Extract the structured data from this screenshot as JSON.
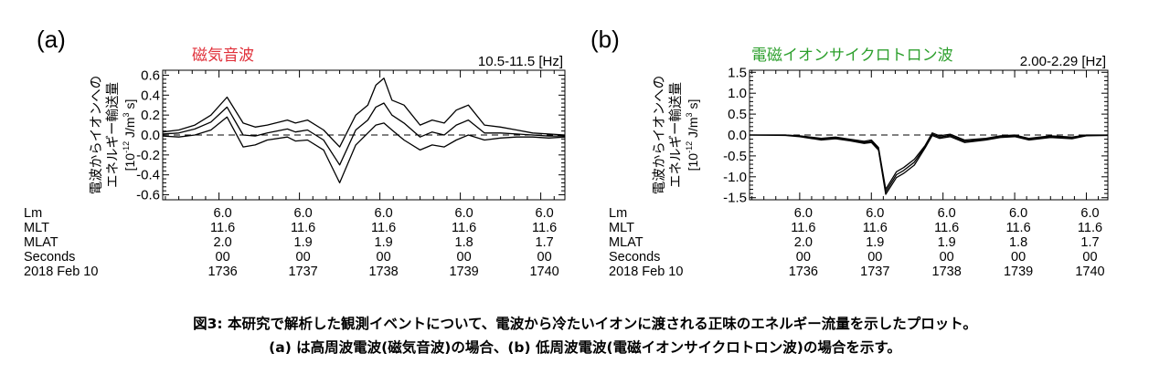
{
  "chart_data": [
    {
      "type": "line",
      "panel_label": "(a)",
      "title": "磁気音波",
      "title_color": "#e0303a",
      "freq_label": "10.5-11.5 [Hz]",
      "ylabel_line1": "電波からイオンへの",
      "ylabel_line2": "エネルギー輸送量",
      "ylabel_units_parts": [
        "[10",
        "-12",
        " J/m",
        "3",
        " s]"
      ],
      "ylim": [
        -0.65,
        0.65
      ],
      "yticks": [
        -0.6,
        -0.4,
        -0.2,
        0.0,
        0.2,
        0.4,
        0.6
      ],
      "ytick_labels": [
        "-0.6",
        "-0.4",
        "-0.2",
        "0.0",
        "0.2",
        "0.4",
        "0.6"
      ],
      "xlim": [
        1735.3,
        1740.3
      ],
      "zero_line": "dashed",
      "series": [
        {
          "role": "upper",
          "x": [
            1735.3,
            1735.5,
            1735.7,
            1735.9,
            1736.1,
            1736.3,
            1736.45,
            1736.6,
            1736.85,
            1736.95,
            1737.1,
            1737.3,
            1737.5,
            1737.7,
            1737.85,
            1737.95,
            1738.05,
            1738.15,
            1738.3,
            1738.5,
            1738.65,
            1738.8,
            1738.95,
            1739.1,
            1739.3,
            1739.5,
            1739.7,
            1739.9,
            1740.1,
            1740.3
          ],
          "y": [
            0.03,
            0.05,
            0.1,
            0.2,
            0.38,
            0.12,
            0.08,
            0.1,
            0.15,
            0.12,
            0.15,
            0.05,
            -0.12,
            0.2,
            0.3,
            0.5,
            0.57,
            0.35,
            0.3,
            0.1,
            0.15,
            0.12,
            0.25,
            0.3,
            0.1,
            0.08,
            0.05,
            0.02,
            0.01,
            0.0
          ]
        },
        {
          "role": "middle",
          "x": [
            1735.3,
            1735.5,
            1735.7,
            1735.9,
            1736.1,
            1736.3,
            1736.45,
            1736.6,
            1736.85,
            1736.95,
            1737.1,
            1737.3,
            1737.5,
            1737.7,
            1737.85,
            1737.95,
            1738.05,
            1738.15,
            1738.3,
            1738.5,
            1738.65,
            1738.8,
            1738.95,
            1739.1,
            1739.3,
            1739.5,
            1739.7,
            1739.9,
            1740.1,
            1740.3
          ],
          "y": [
            0.01,
            0.02,
            0.06,
            0.13,
            0.28,
            0.0,
            -0.01,
            0.02,
            0.06,
            0.03,
            0.05,
            -0.05,
            -0.3,
            0.05,
            0.15,
            0.28,
            0.32,
            0.2,
            0.12,
            -0.02,
            0.03,
            0.0,
            0.1,
            0.15,
            0.02,
            0.02,
            0.01,
            0.0,
            -0.01,
            -0.01
          ]
        },
        {
          "role": "lower",
          "x": [
            1735.3,
            1735.5,
            1735.7,
            1735.9,
            1736.1,
            1736.3,
            1736.45,
            1736.6,
            1736.85,
            1736.95,
            1737.1,
            1737.3,
            1737.5,
            1737.7,
            1737.85,
            1737.95,
            1738.05,
            1738.15,
            1738.3,
            1738.5,
            1738.65,
            1738.8,
            1738.95,
            1739.1,
            1739.3,
            1739.5,
            1739.7,
            1739.9,
            1740.1,
            1740.3
          ],
          "y": [
            -0.01,
            -0.02,
            0.0,
            0.05,
            0.18,
            -0.12,
            -0.1,
            -0.05,
            -0.02,
            -0.06,
            -0.05,
            -0.15,
            -0.48,
            -0.1,
            0.02,
            0.1,
            0.12,
            0.05,
            -0.05,
            -0.15,
            -0.1,
            -0.12,
            -0.05,
            0.0,
            -0.05,
            -0.03,
            -0.02,
            -0.02,
            -0.03,
            -0.02
          ]
        }
      ]
    },
    {
      "type": "line",
      "panel_label": "(b)",
      "title": "電磁イオンサイクロトロン波",
      "title_color": "#2ea02e",
      "freq_label": "2.00-2.29 [Hz]",
      "ylabel_line1": "電波からイオンへの",
      "ylabel_line2": "エネルギー輸送量",
      "ylabel_units_parts": [
        "[10",
        "-12",
        " J/m",
        "3",
        " s]"
      ],
      "ylim": [
        -1.55,
        1.55
      ],
      "yticks": [
        -1.5,
        -1.0,
        -0.5,
        0.0,
        0.5,
        1.0,
        1.5
      ],
      "ytick_labels": [
        "-1.5",
        "-1.0",
        "-0.5",
        "0.0",
        "0.5",
        "1.0",
        "1.5"
      ],
      "xlim": [
        1735.3,
        1740.3
      ],
      "zero_line": "dashed",
      "series": [
        {
          "role": "upper",
          "x": [
            1735.3,
            1735.8,
            1736.0,
            1736.3,
            1736.5,
            1736.7,
            1736.9,
            1737.0,
            1737.1,
            1737.2,
            1737.35,
            1737.45,
            1737.6,
            1737.75,
            1737.85,
            1737.95,
            1738.1,
            1738.3,
            1738.6,
            1738.8,
            1739.0,
            1739.2,
            1739.5,
            1739.8,
            1740.0,
            1740.3
          ],
          "y": [
            0.0,
            0.0,
            -0.02,
            -0.08,
            -0.05,
            -0.1,
            -0.15,
            -0.12,
            -0.3,
            -1.3,
            -0.88,
            -0.78,
            -0.58,
            -0.25,
            0.05,
            -0.02,
            0.02,
            -0.12,
            -0.08,
            -0.02,
            0.0,
            -0.08,
            -0.02,
            -0.05,
            0.0,
            0.0
          ]
        },
        {
          "role": "middle",
          "x": [
            1735.3,
            1735.8,
            1736.0,
            1736.3,
            1736.5,
            1736.7,
            1736.9,
            1737.0,
            1737.1,
            1737.2,
            1737.35,
            1737.45,
            1737.6,
            1737.75,
            1737.85,
            1737.95,
            1738.1,
            1738.3,
            1738.6,
            1738.8,
            1739.0,
            1739.2,
            1739.5,
            1739.8,
            1740.0,
            1740.3
          ],
          "y": [
            0.0,
            0.0,
            -0.03,
            -0.1,
            -0.07,
            -0.12,
            -0.18,
            -0.15,
            -0.33,
            -1.36,
            -0.95,
            -0.85,
            -0.65,
            -0.28,
            0.02,
            -0.05,
            -0.01,
            -0.15,
            -0.1,
            -0.04,
            -0.02,
            -0.1,
            -0.04,
            -0.07,
            -0.01,
            0.0
          ]
        },
        {
          "role": "lower",
          "x": [
            1735.3,
            1735.8,
            1736.0,
            1736.3,
            1736.5,
            1736.7,
            1736.9,
            1737.0,
            1737.1,
            1737.2,
            1737.35,
            1737.45,
            1737.6,
            1737.75,
            1737.85,
            1737.95,
            1738.1,
            1738.3,
            1738.6,
            1738.8,
            1739.0,
            1739.2,
            1739.5,
            1739.8,
            1740.0,
            1740.3
          ],
          "y": [
            0.0,
            -0.01,
            -0.04,
            -0.12,
            -0.09,
            -0.14,
            -0.2,
            -0.18,
            -0.36,
            -1.42,
            -1.02,
            -0.92,
            -0.72,
            -0.31,
            -0.01,
            -0.08,
            -0.04,
            -0.18,
            -0.12,
            -0.06,
            -0.04,
            -0.12,
            -0.06,
            -0.09,
            -0.02,
            -0.01
          ]
        }
      ]
    }
  ],
  "ephemeris": {
    "row_labels": [
      "Lm",
      "MLT",
      "MLAT",
      "Seconds",
      "2018 Feb 10"
    ],
    "columns_x": [
      1736,
      1737,
      1738,
      1739,
      1740
    ],
    "rows": [
      [
        "6.0",
        "6.0",
        "6.0",
        "6.0",
        "6.0"
      ],
      [
        "11.6",
        "11.6",
        "11.6",
        "11.6",
        "11.6"
      ],
      [
        "2.0",
        "1.9",
        "1.9",
        "1.8",
        "1.7"
      ],
      [
        "00",
        "00",
        "00",
        "00",
        "00"
      ],
      [
        "1736",
        "1737",
        "1738",
        "1739",
        "1740"
      ]
    ]
  },
  "caption": {
    "line1": "図3: 本研究で解析した観測イベントについて、電波から冷たいイオンに渡される正味のエネルギー流量を示したプロット。",
    "line2": "(a) は高周波電波(磁気音波)の場合、(b) 低周波電波(電磁イオンサイクロトロン波)の場合を示す。"
  }
}
